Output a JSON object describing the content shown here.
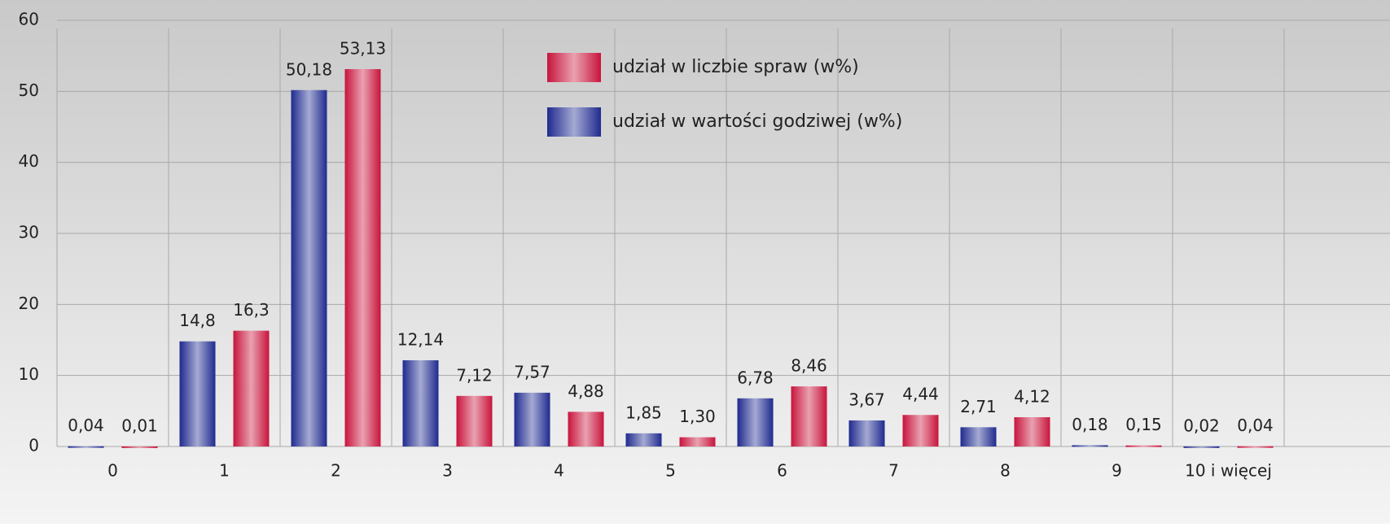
{
  "chart_data": {
    "type": "bar",
    "categories": [
      "0",
      "1",
      "2",
      "3",
      "4",
      "5",
      "6",
      "7",
      "8",
      "9",
      "10 i więcej"
    ],
    "series": [
      {
        "name": "udział w wartości godziwej (w%)",
        "color": "#1f2a8f",
        "values": [
          0.04,
          14.8,
          50.18,
          12.14,
          7.57,
          1.85,
          6.78,
          3.67,
          2.71,
          0.18,
          0.02
        ],
        "value_labels": [
          "0,04",
          "14,8",
          "50,18",
          "12,14",
          "7,57",
          "1,85",
          "6,78",
          "3,67",
          "2,71",
          "0,18",
          "0,02"
        ]
      },
      {
        "name": "udział w liczbie spraw (w%)",
        "color": "#c8143c",
        "values": [
          0.01,
          16.3,
          53.13,
          7.12,
          4.88,
          1.3,
          8.46,
          4.44,
          4.12,
          0.15,
          0.04
        ],
        "value_labels": [
          "0,01",
          "16,3",
          "53,13",
          "7,12",
          "4,88",
          "1,30",
          "8,46",
          "4,44",
          "4,12",
          "0,15",
          "0,04"
        ]
      }
    ],
    "ylim": [
      0,
      60
    ],
    "yticks": [
      0,
      10,
      20,
      30,
      40,
      50,
      60
    ],
    "grid": true
  }
}
